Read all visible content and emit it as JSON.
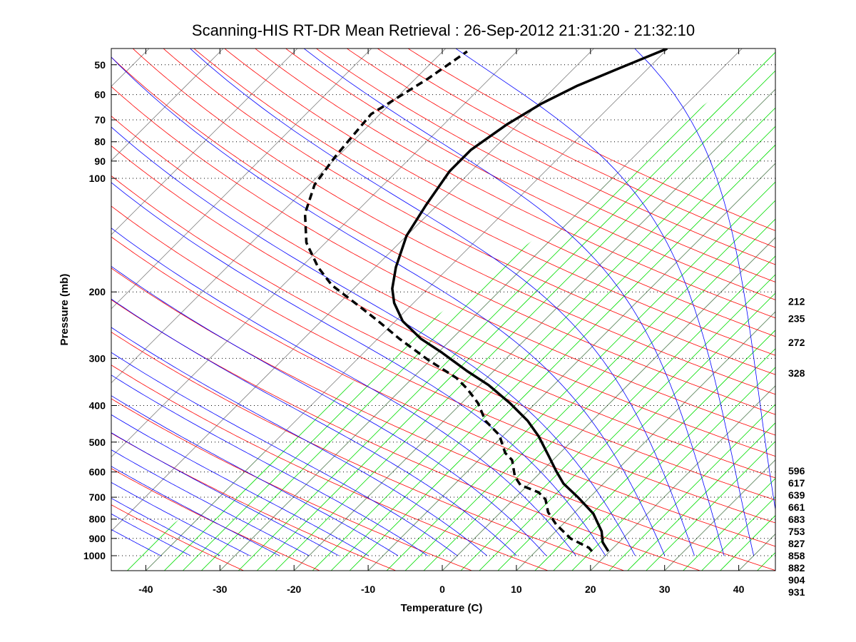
{
  "chart_data": {
    "type": "line",
    "subtype": "skew-T log-p diagram",
    "title": "Scanning-HIS RT-DR Mean Retrieval : 26-Sep-2012 21:31:20 - 21:32:10",
    "xlabel": "Temperature (C)",
    "ylabel": "Pressure (mb)",
    "xlim": [
      -45,
      45
    ],
    "ylim": [
      1095,
      45
    ],
    "x_ticks": [
      -40,
      -30,
      -20,
      -10,
      0,
      10,
      20,
      30,
      40
    ],
    "y_ticks": [
      50,
      60,
      70,
      80,
      90,
      100,
      200,
      300,
      400,
      500,
      600,
      700,
      800,
      900,
      1000
    ],
    "grid": "dotted horizontal at pressure ticks",
    "series": [
      {
        "name": "Temperature",
        "style": "solid",
        "color": "#000000",
        "p": [
          974,
          921,
          862,
          774,
          700,
          644,
          596,
          546,
          483,
          439,
          394,
          353,
          324,
          290,
          266,
          239,
          214,
          196,
          172,
          142,
          118,
          95.8,
          84,
          72.1,
          63.3,
          56.8,
          50.9,
          45.3
        ],
        "T": [
          19.8,
          17.8,
          16.2,
          12.7,
          8.4,
          4.6,
          1.9,
          -1.0,
          -5.1,
          -8.7,
          -13.5,
          -18.8,
          -23.6,
          -29.4,
          -34.2,
          -39.0,
          -42.6,
          -44.8,
          -47.2,
          -50.0,
          -51.5,
          -52.9,
          -52.9,
          -51.5,
          -49.6,
          -47.2,
          -43.8,
          -40.1
        ]
      },
      {
        "name": "Dewpoint",
        "style": "dashed",
        "color": "#000000",
        "p": [
          974,
          953,
          901,
          826,
          767,
          709,
          679,
          650,
          617,
          558,
          534,
          479,
          439,
          394,
          361,
          338,
          303,
          266,
          239,
          219,
          192,
          172,
          148,
          124,
          104,
          87.8,
          67.6,
          54.4,
          46.1
        ],
        "T": [
          17.6,
          16.7,
          13.0,
          9.1,
          6.4,
          4.3,
          2.4,
          -1.0,
          -2.9,
          -5.5,
          -7.4,
          -10.6,
          -14.4,
          -17.8,
          -21.2,
          -24.1,
          -30.3,
          -37.1,
          -42.3,
          -46.7,
          -53.4,
          -57.7,
          -62.6,
          -66.7,
          -69.3,
          -70.3,
          -71.2,
          -68.3,
          -66.7
        ]
      }
    ],
    "background_lines": {
      "isotherms": {
        "color": "#808080",
        "interval_C": 10
      },
      "isotherms_minor": {
        "color": "#00dd00",
        "interval_C": 2.5
      },
      "dry_adiabats": {
        "color": "#ff0000"
      },
      "moist_adiabats": {
        "color": "#0000ff"
      }
    },
    "right_labels": [
      "212",
      "235",
      "272",
      "328",
      "596",
      "617",
      "639",
      "661",
      "683",
      "753",
      "827",
      "858",
      "882",
      "904",
      "931"
    ]
  }
}
